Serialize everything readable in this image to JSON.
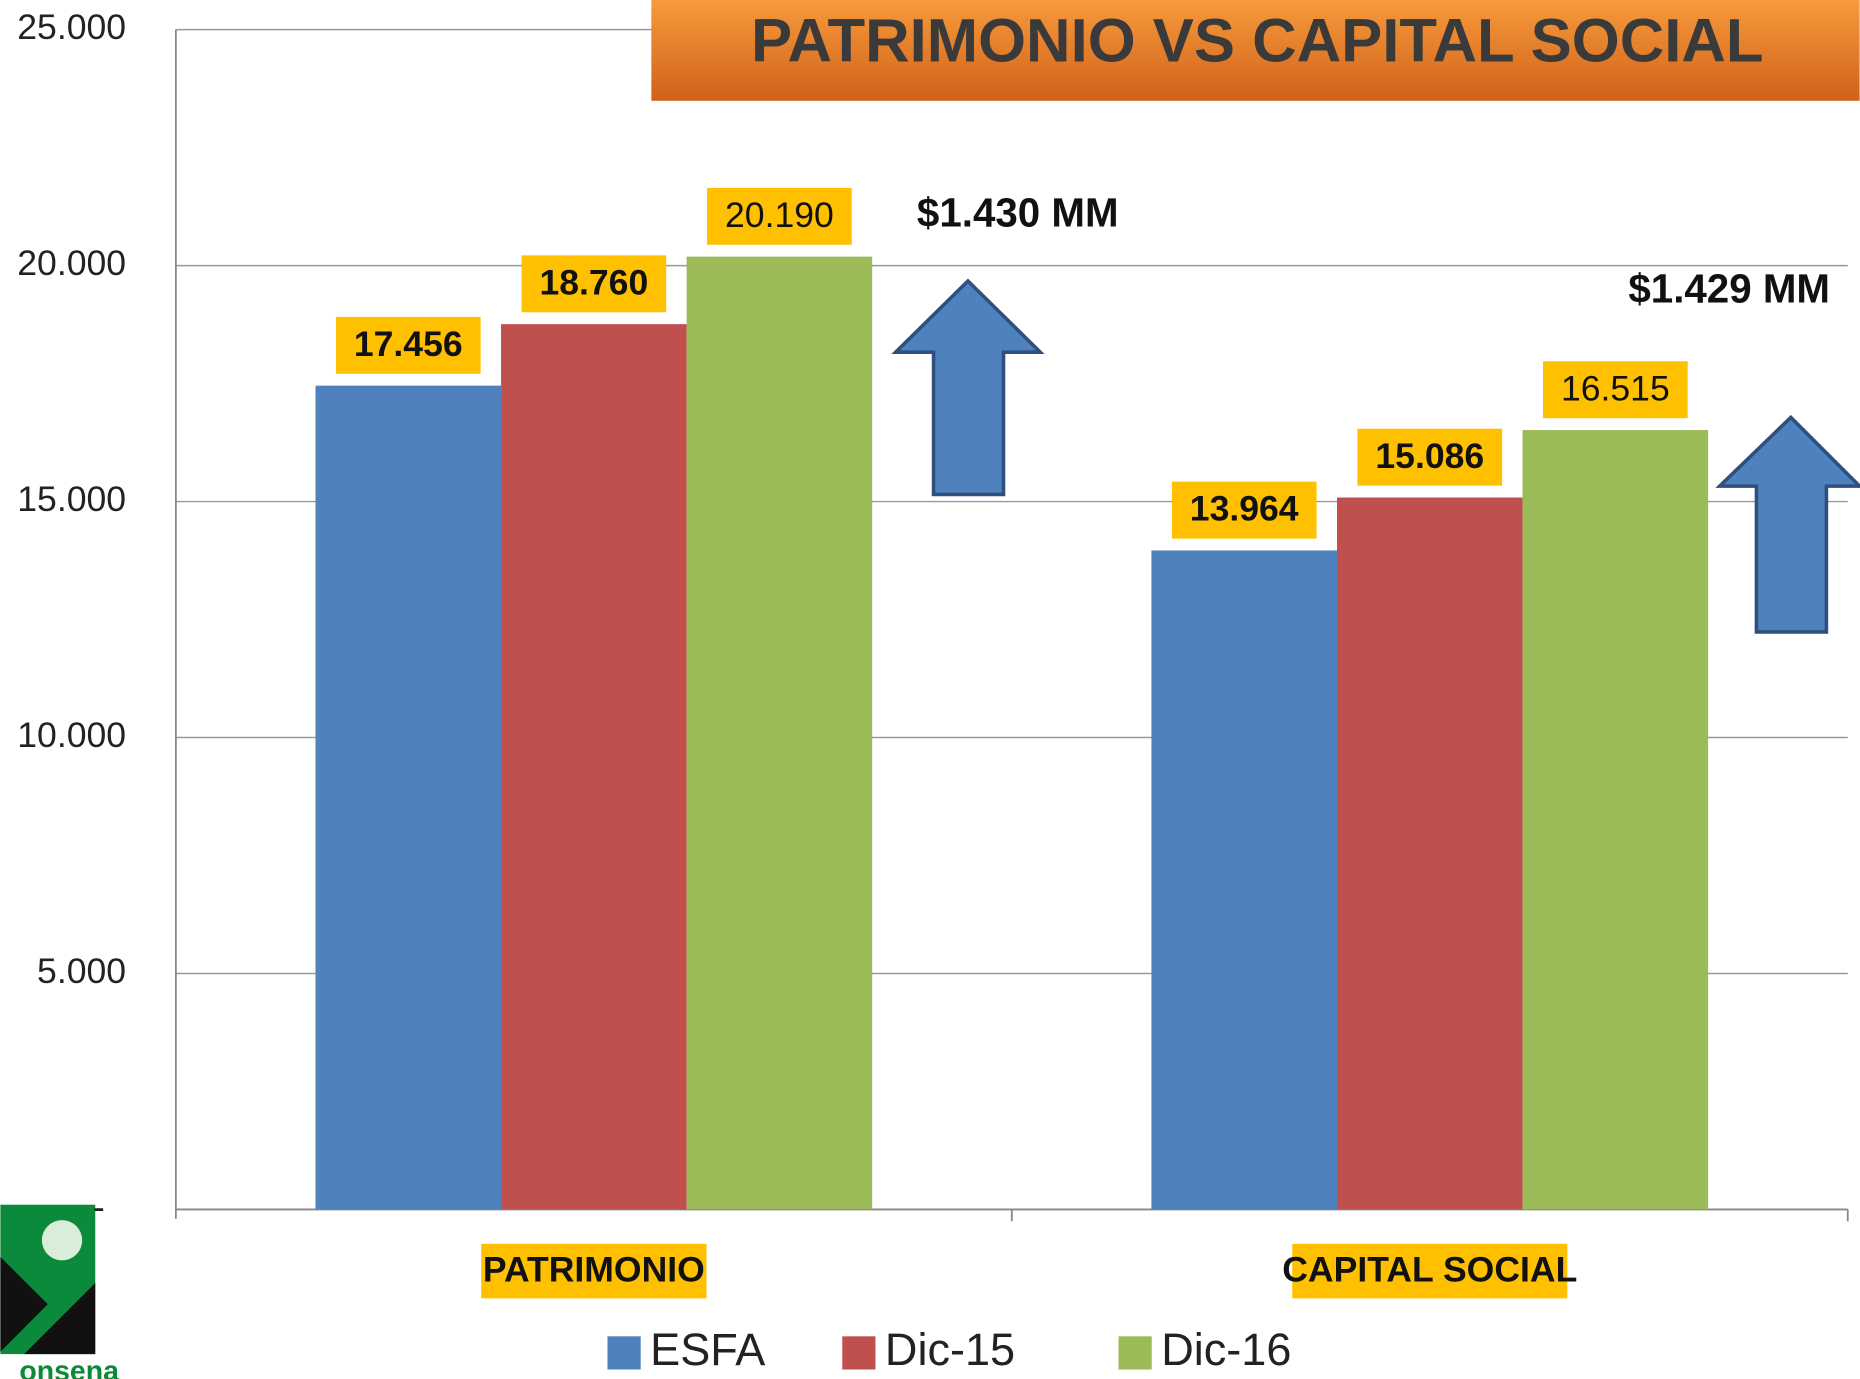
{
  "chart_data": {
    "type": "bar",
    "title": "PATRIMONIO VS CAPITAL SOCIAL",
    "categories": [
      "PATRIMONIO",
      "CAPITAL SOCIAL"
    ],
    "series": [
      {
        "name": "ESFA",
        "color": "#4f81bd",
        "values": [
          17456,
          13964
        ],
        "value_labels": [
          "17.456",
          "13.964"
        ]
      },
      {
        "name": "Dic-15",
        "color": "#c0504d",
        "values": [
          18760,
          15086
        ],
        "value_labels": [
          "18.760",
          "15.086"
        ]
      },
      {
        "name": "Dic-16",
        "color": "#9bbb59",
        "values": [
          20190,
          16515
        ],
        "value_labels": [
          "20.190",
          "16.515"
        ]
      }
    ],
    "ylim": [
      0,
      25000
    ],
    "yticks": [
      {
        "value": 0,
        "label": "-"
      },
      {
        "value": 5000,
        "label": "5.000"
      },
      {
        "value": 10000,
        "label": "10.000"
      },
      {
        "value": 15000,
        "label": "15.000"
      },
      {
        "value": 20000,
        "label": "20.000"
      },
      {
        "value": 25000,
        "label": "25.000"
      }
    ],
    "grid": true,
    "legend": "bottom",
    "annotations": [
      "$1.430 MM",
      "$1.429 MM"
    ],
    "logo_text": "onsena"
  }
}
